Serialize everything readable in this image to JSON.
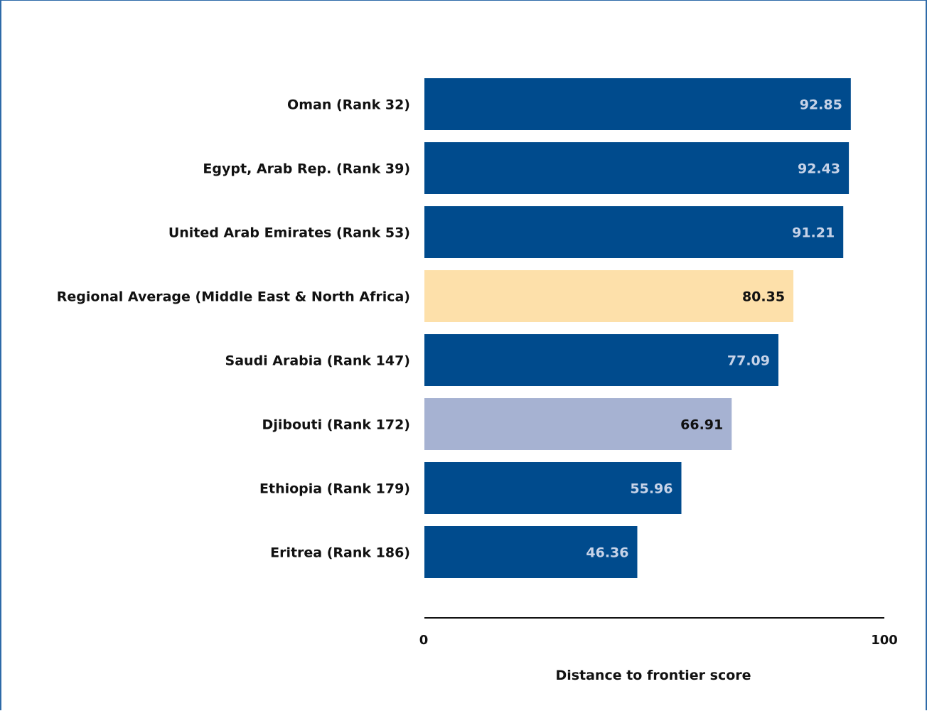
{
  "chart_data": {
    "type": "bar",
    "orientation": "horizontal",
    "title": "",
    "categories": [
      "Oman (Rank 32)",
      "Egypt, Arab Rep. (Rank 39)",
      "United Arab Emirates (Rank 53)",
      "Regional Average (Middle East & North Africa)",
      "Saudi Arabia (Rank 147)",
      "Djibouti (Rank 172)",
      "Ethiopia (Rank 179)",
      "Eritrea (Rank 186)"
    ],
    "values": [
      92.85,
      92.43,
      91.21,
      80.35,
      77.09,
      66.91,
      55.96,
      46.36
    ],
    "value_labels": [
      "92.85",
      "92.43",
      "91.21",
      "80.35",
      "77.09",
      "66.91",
      "55.96",
      "46.36"
    ],
    "bar_colors": [
      "#004b8d",
      "#004b8d",
      "#004b8d",
      "#fde0aa",
      "#004b8d",
      "#a6b2d2",
      "#004b8d",
      "#004b8d"
    ],
    "label_colors": [
      "#c7d3e8",
      "#c7d3e8",
      "#c7d3e8",
      "#111111",
      "#c7d3e8",
      "#111111",
      "#c7d3e8",
      "#c7d3e8"
    ],
    "xlabel": "Distance to frontier score",
    "ylabel": "",
    "xlim": [
      0,
      100
    ],
    "x_ticks": [
      "0",
      "100"
    ],
    "grid": false,
    "legend": "none"
  }
}
